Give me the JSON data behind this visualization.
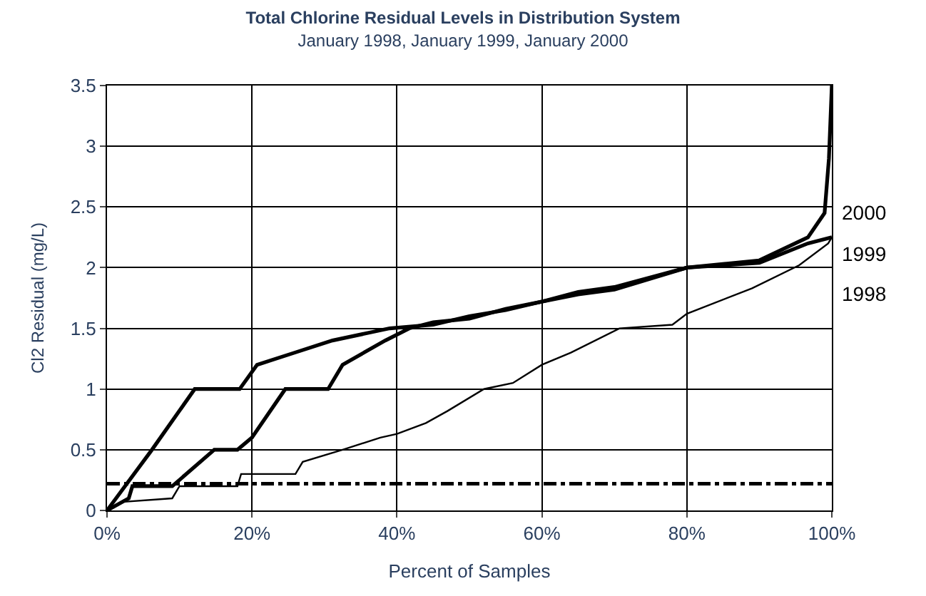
{
  "chart_data": {
    "type": "line",
    "title": "Total Chlorine Residual Levels in Distribution System",
    "subtitle": "January 1998, January 1999, January 2000",
    "xlabel": "Percent of Samples",
    "ylabel": "Cl2 Residual (mg/L)",
    "series": [
      {
        "name": "1998",
        "color": "#000000",
        "x": [
          0,
          2,
          9,
          10,
          18,
          18.5,
          26,
          27,
          32.5,
          37.7,
          40,
          44,
          47,
          52,
          56,
          60,
          64,
          70.7,
          78,
          80,
          89,
          95.5,
          99.5,
          100
        ],
        "values": [
          0,
          0.07,
          0.1,
          0.2,
          0.2,
          0.3,
          0.3,
          0.4,
          0.5,
          0.6,
          0.63,
          0.72,
          0.82,
          1.0,
          1.05,
          1.2,
          1.3,
          1.5,
          1.53,
          1.62,
          1.83,
          2.02,
          2.2,
          2.25
        ]
      },
      {
        "name": "1999",
        "color": "#000000",
        "x": [
          0,
          3,
          3.5,
          9,
          14.8,
          18,
          20,
          24.6,
          30.5,
          32.5,
          38.4,
          41.7,
          45,
          50,
          55,
          60,
          65,
          70,
          80,
          90,
          96.7,
          100
        ],
        "values": [
          0,
          0.1,
          0.2,
          0.2,
          0.5,
          0.5,
          0.6,
          1.0,
          1.0,
          1.2,
          1.4,
          1.5,
          1.55,
          1.58,
          1.66,
          1.72,
          1.78,
          1.82,
          2.0,
          2.04,
          2.2,
          2.25
        ]
      },
      {
        "name": "2000",
        "color": "#000000",
        "x": [
          0,
          6.2,
          12.1,
          18.3,
          20.7,
          25.9,
          31.1,
          39,
          45,
          50,
          55,
          60,
          65,
          70,
          80,
          90,
          96.7,
          99,
          99.6,
          100
        ],
        "values": [
          0,
          0.5,
          1.0,
          1.0,
          1.2,
          1.3,
          1.4,
          1.5,
          1.53,
          1.6,
          1.65,
          1.72,
          1.8,
          1.84,
          2.0,
          2.06,
          2.25,
          2.45,
          2.9,
          3.5
        ]
      }
    ],
    "ref_lines": [
      {
        "axis": "y",
        "value": 0.22,
        "line_style": "dashed"
      }
    ],
    "xlim": [
      0,
      100
    ],
    "xticks": [
      {
        "value": 0,
        "label": "0%"
      },
      {
        "value": 20,
        "label": "20%"
      },
      {
        "value": 40,
        "label": "40%"
      },
      {
        "value": 60,
        "label": "60%"
      },
      {
        "value": 80,
        "label": "80%"
      },
      {
        "value": 100,
        "label": "100%"
      }
    ],
    "ylim": [
      0,
      3.5
    ],
    "yticks": [
      0,
      0.5,
      1,
      1.5,
      2,
      2.5,
      3,
      3.5
    ],
    "grid": true,
    "legend": false,
    "marker": "none",
    "line_style": "solid"
  }
}
